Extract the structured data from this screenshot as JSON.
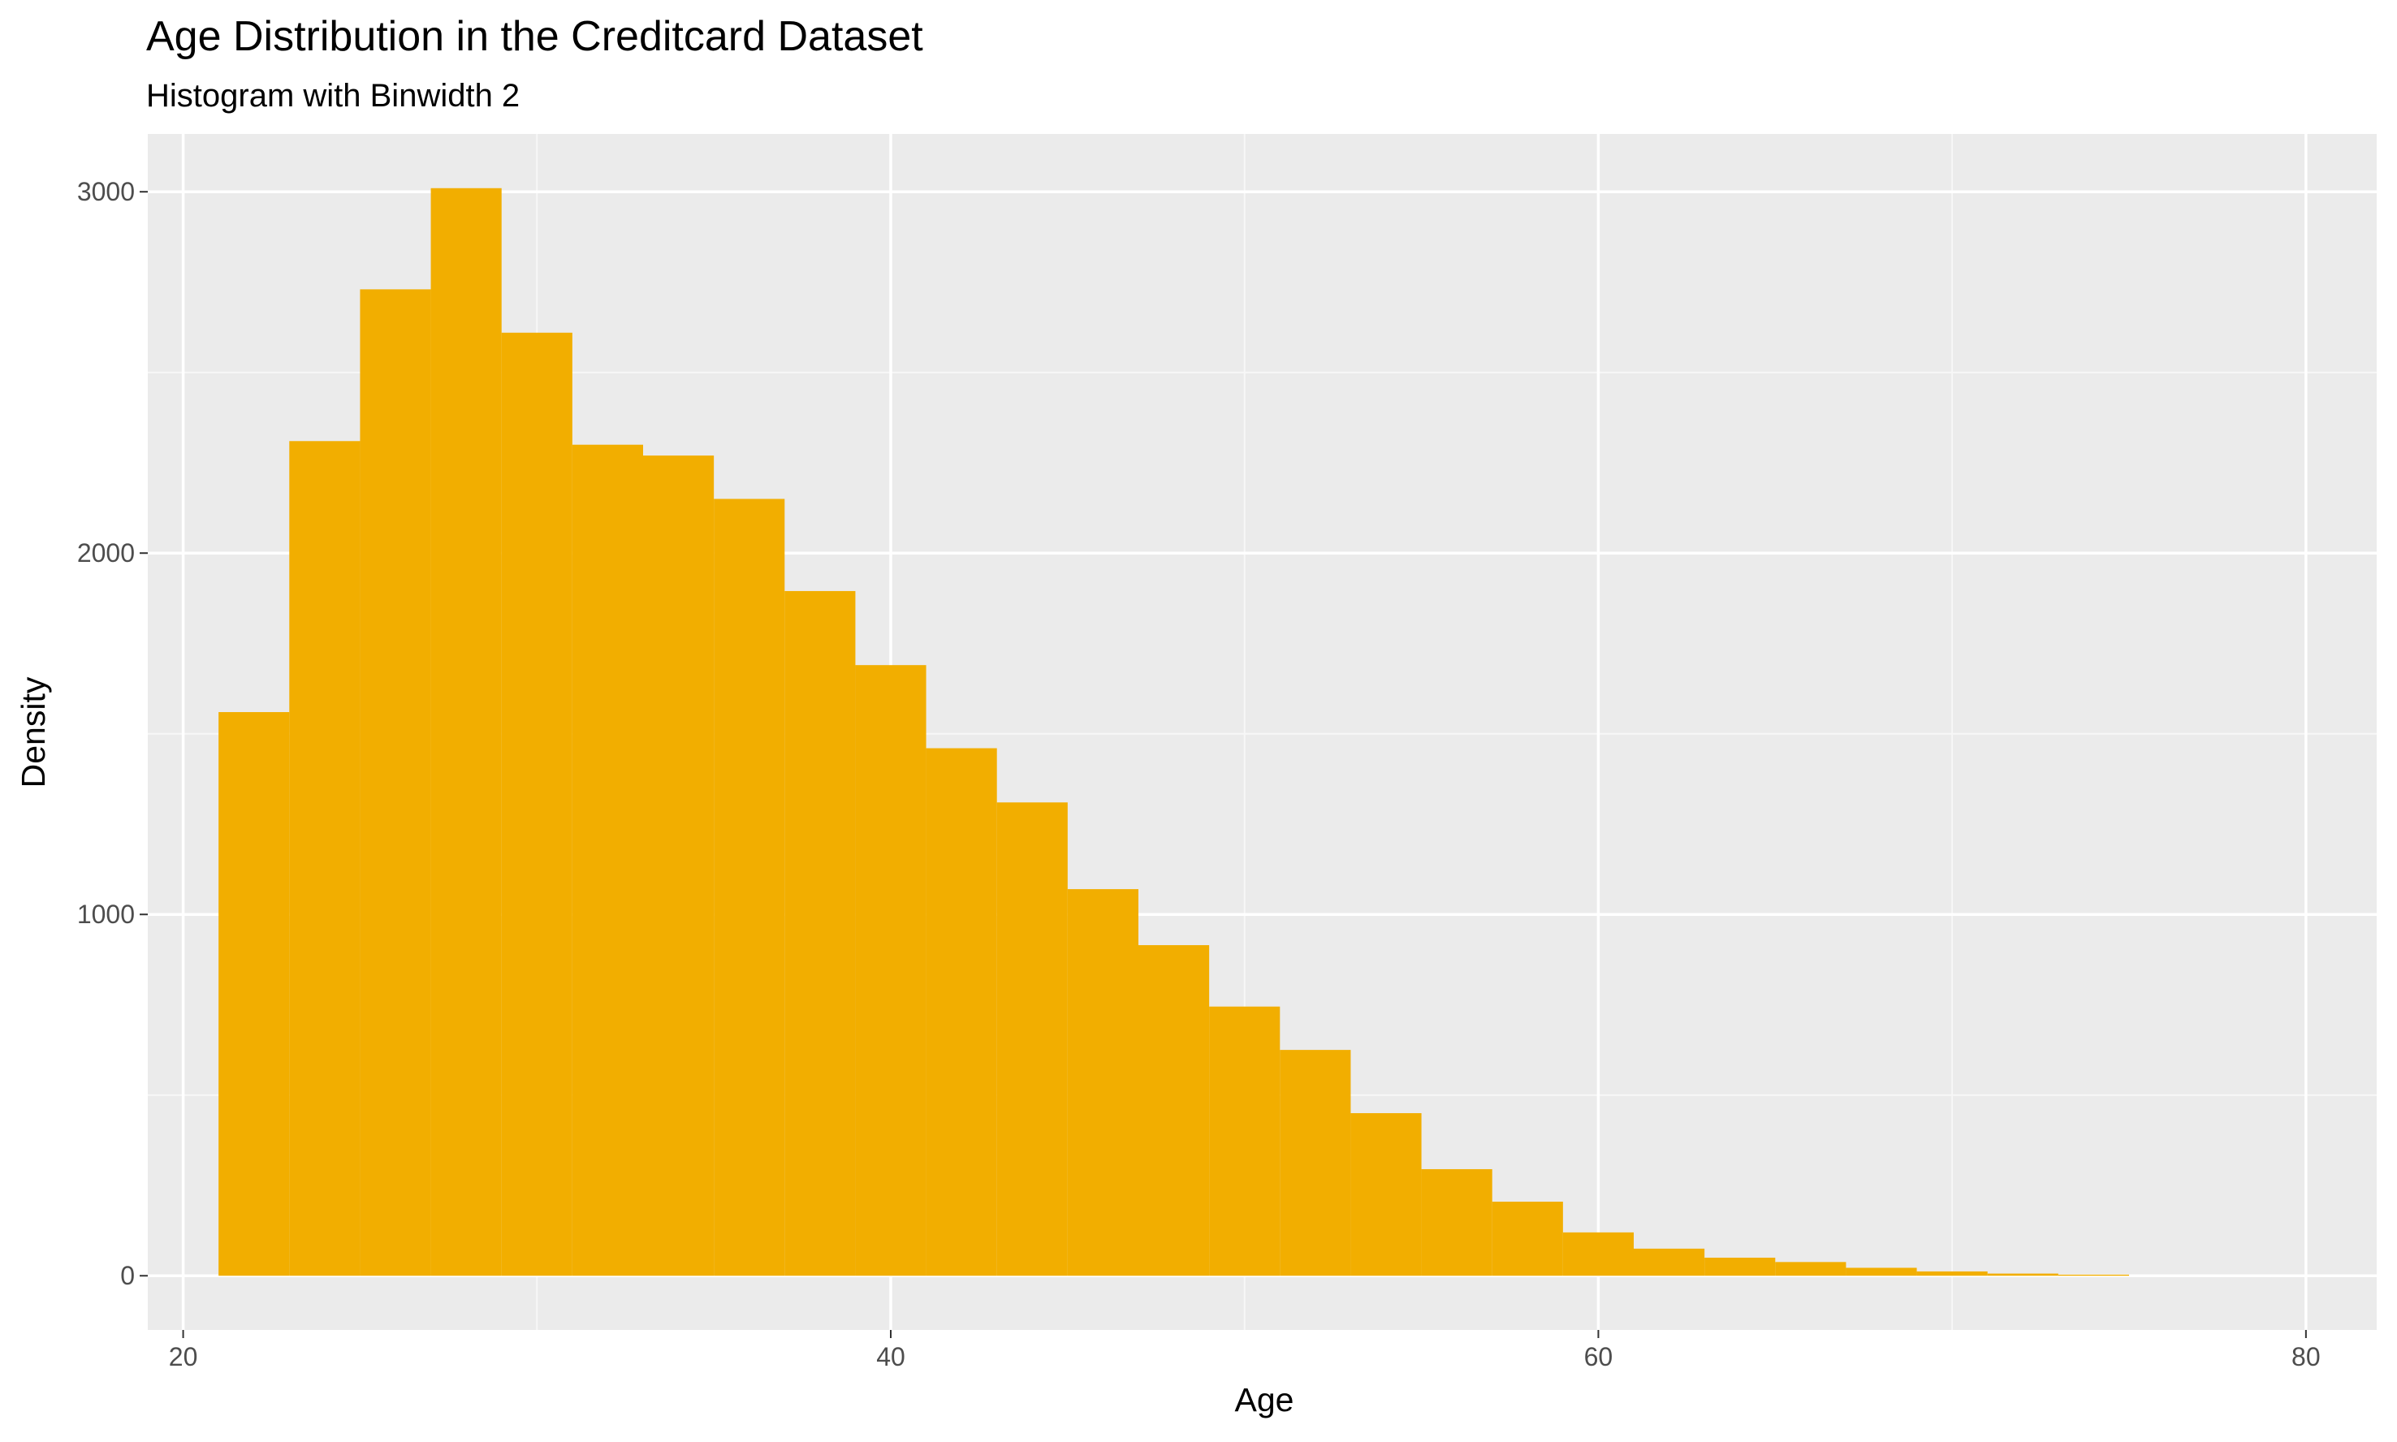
{
  "colors": {
    "panel_background": "#ebebeb",
    "grid_major": "#ffffff",
    "grid_minor": "#f7f7f7",
    "bar_fill": "#f2ae00",
    "tick_text": "#4d4d4d",
    "tick_mark": "#333333"
  },
  "chart_data": {
    "type": "bar",
    "subtype": "histogram",
    "title": "Age Distribution in the Creditcard Dataset",
    "subtitle": "Histogram with Binwidth 2",
    "xlabel": "Age",
    "ylabel": "Density",
    "xlim": [
      19,
      82
    ],
    "ylim": [
      -150,
      3160
    ],
    "x_ticks": [
      20,
      40,
      60,
      80
    ],
    "x_tick_labels": [
      "20",
      "40",
      "60",
      "80"
    ],
    "y_ticks": [
      0,
      1000,
      2000,
      3000
    ],
    "y_tick_labels": [
      "0",
      "1000",
      "2000",
      "3000"
    ],
    "grid": true,
    "legend": "none",
    "binwidth": 2,
    "bins": [
      {
        "x_start": 21,
        "x_end": 23,
        "value": 1560
      },
      {
        "x_start": 23,
        "x_end": 25,
        "value": 2310
      },
      {
        "x_start": 25,
        "x_end": 27,
        "value": 2730
      },
      {
        "x_start": 27,
        "x_end": 29,
        "value": 3010
      },
      {
        "x_start": 29,
        "x_end": 31,
        "value": 2610
      },
      {
        "x_start": 31,
        "x_end": 33,
        "value": 2300
      },
      {
        "x_start": 33,
        "x_end": 35,
        "value": 2270
      },
      {
        "x_start": 35,
        "x_end": 37,
        "value": 2150
      },
      {
        "x_start": 37,
        "x_end": 39,
        "value": 1895
      },
      {
        "x_start": 39,
        "x_end": 41,
        "value": 1690
      },
      {
        "x_start": 41,
        "x_end": 43,
        "value": 1460
      },
      {
        "x_start": 43,
        "x_end": 45,
        "value": 1310
      },
      {
        "x_start": 45,
        "x_end": 47,
        "value": 1070
      },
      {
        "x_start": 47,
        "x_end": 49,
        "value": 915
      },
      {
        "x_start": 49,
        "x_end": 51,
        "value": 745
      },
      {
        "x_start": 51,
        "x_end": 53,
        "value": 625
      },
      {
        "x_start": 53,
        "x_end": 55,
        "value": 450
      },
      {
        "x_start": 55,
        "x_end": 57,
        "value": 295
      },
      {
        "x_start": 57,
        "x_end": 59,
        "value": 205
      },
      {
        "x_start": 59,
        "x_end": 61,
        "value": 120
      },
      {
        "x_start": 61,
        "x_end": 63,
        "value": 75
      },
      {
        "x_start": 63,
        "x_end": 65,
        "value": 50
      },
      {
        "x_start": 65,
        "x_end": 67,
        "value": 38
      },
      {
        "x_start": 67,
        "x_end": 69,
        "value": 22
      },
      {
        "x_start": 69,
        "x_end": 71,
        "value": 12
      },
      {
        "x_start": 71,
        "x_end": 73,
        "value": 6
      },
      {
        "x_start": 73,
        "x_end": 75,
        "value": 3
      },
      {
        "x_start": 75,
        "x_end": 77,
        "value": 0
      },
      {
        "x_start": 77,
        "x_end": 79,
        "value": 0
      }
    ]
  }
}
